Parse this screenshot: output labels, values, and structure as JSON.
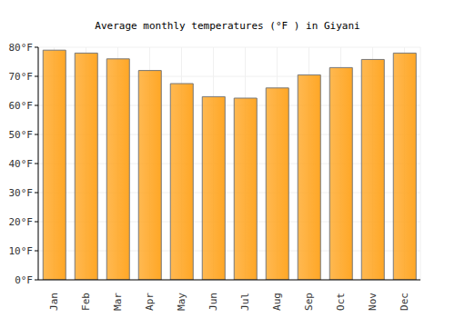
{
  "chart_data": {
    "type": "bar",
    "title": "Average monthly temperatures (°F ) in Giyani",
    "categories": [
      "Jan",
      "Feb",
      "Mar",
      "Apr",
      "May",
      "Jun",
      "Jul",
      "Aug",
      "Sep",
      "Oct",
      "Nov",
      "Dec"
    ],
    "values": [
      79,
      78,
      76,
      72,
      67.5,
      63,
      62.5,
      66,
      70.5,
      73,
      75.8,
      78
    ],
    "color": "#ffa726",
    "ylim": [
      0,
      80
    ],
    "yticks": [
      {
        "value": 0,
        "label": "0°F"
      },
      {
        "value": 10,
        "label": "10°F"
      },
      {
        "value": 20,
        "label": "20°F"
      },
      {
        "value": 30,
        "label": "30°F"
      },
      {
        "value": 40,
        "label": "40°F"
      },
      {
        "value": 50,
        "label": "50°F"
      },
      {
        "value": 60,
        "label": "60°F"
      },
      {
        "value": 70,
        "label": "70°F"
      },
      {
        "value": 80,
        "label": "80°F"
      }
    ],
    "grid": true
  }
}
